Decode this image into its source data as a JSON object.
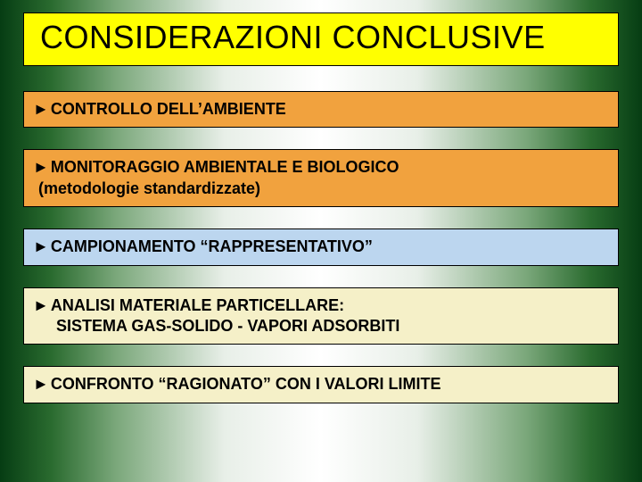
{
  "slide": {
    "title": "CONSIDERAZIONI CONCLUSIVE",
    "title_bg": "#ffff00",
    "title_border": "#000000",
    "title_fontsize": 36,
    "background_gradient": [
      "#063d13",
      "#2a6b2f",
      "#7aa77a",
      "#e8efe8",
      "#ffffff",
      "#e8efe8",
      "#7aa77a",
      "#2a6b2f",
      "#063d13"
    ],
    "arrow_glyph": "►",
    "item_border": "#000000",
    "item_fontsize": 18,
    "items": [
      {
        "bg": "#f1a23e",
        "line1": "CONTROLLO DELL’AMBIENTE",
        "line2": ""
      },
      {
        "bg": "#f1a23e",
        "line1": "MONITORAGGIO AMBIENTALE E BIOLOGICO",
        "line2": "(metodologie standardizzate)"
      },
      {
        "bg": "#bcd6ef",
        "line1": "CAMPIONAMENTO “RAPPRESENTATIVO”",
        "line2": ""
      },
      {
        "bg": "#f5f0c8",
        "line1": "ANALISI MATERIALE PARTICELLARE:",
        "line2": "SISTEMA GAS-SOLIDO -  VAPORI ADSORBITI",
        "indent_line2": true
      },
      {
        "bg": "#f5f0c8",
        "line1": "CONFRONTO “RAGIONATO” CON I VALORI LIMITE",
        "line2": ""
      }
    ]
  }
}
